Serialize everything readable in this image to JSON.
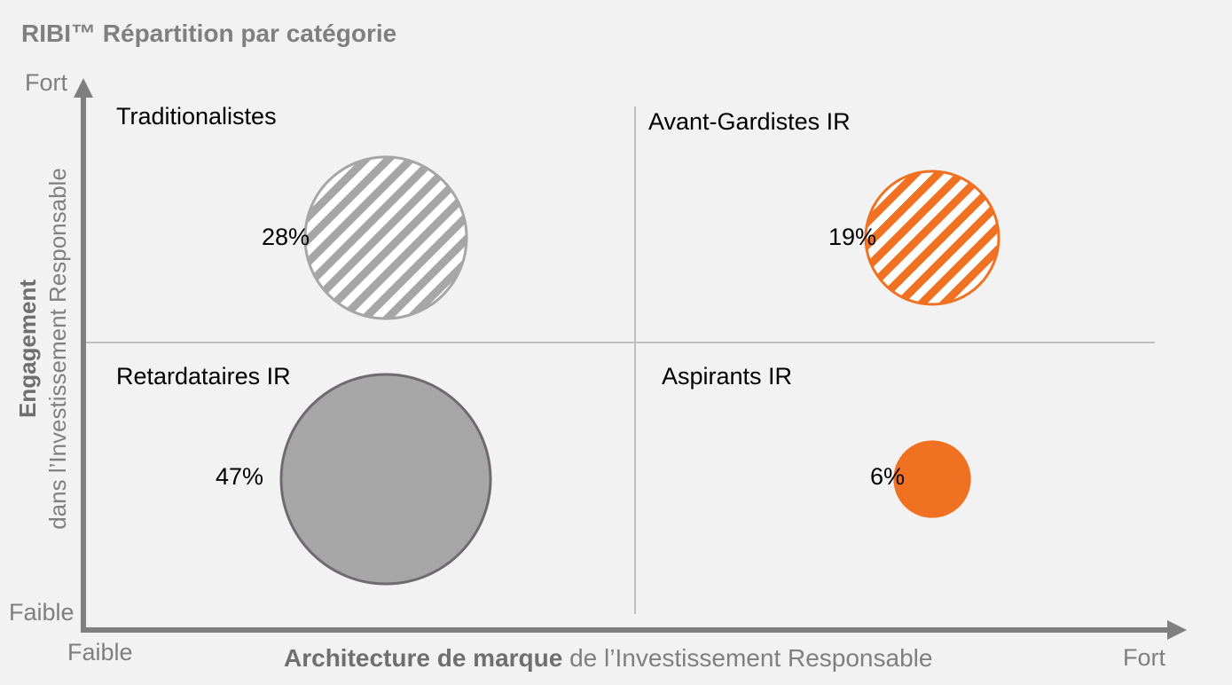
{
  "chart_data": {
    "type": "bubble-quadrant",
    "title": "RIBI™ Répartition par catégorie",
    "x_axis": {
      "label_bold": "Architecture de marque",
      "label_rest": " de l’Investissement Responsable",
      "low": "Faible",
      "high": "Fort"
    },
    "y_axis": {
      "label_bold": "Engagement",
      "label_rest": "dans l’Investissement Responsable",
      "low": "Faible",
      "high": "Fort"
    },
    "quadrants": [
      {
        "name": "Traditionalistes",
        "position": "top-left",
        "value": 28,
        "label": "28%",
        "fill": "hatched",
        "color": "#a6a6a6"
      },
      {
        "name": "Avant-Gardistes IR",
        "position": "top-right",
        "value": 19,
        "label": "19%",
        "fill": "hatched",
        "color": "#f07122"
      },
      {
        "name": "Retardataires IR",
        "position": "bottom-left",
        "value": 47,
        "label": "47%",
        "fill": "solid",
        "color": "#a6a6a6"
      },
      {
        "name": "Aspirants IR",
        "position": "bottom-right",
        "value": 6,
        "label": "6%",
        "fill": "solid",
        "color": "#f07122"
      }
    ]
  },
  "colors": {
    "background": "#f2f2f2",
    "axis": "#7f7f7f",
    "divider": "#c0c0c0",
    "orange": "#f07122",
    "gray": "#a6a6a6",
    "bubble_outline": "#6f6a70"
  }
}
